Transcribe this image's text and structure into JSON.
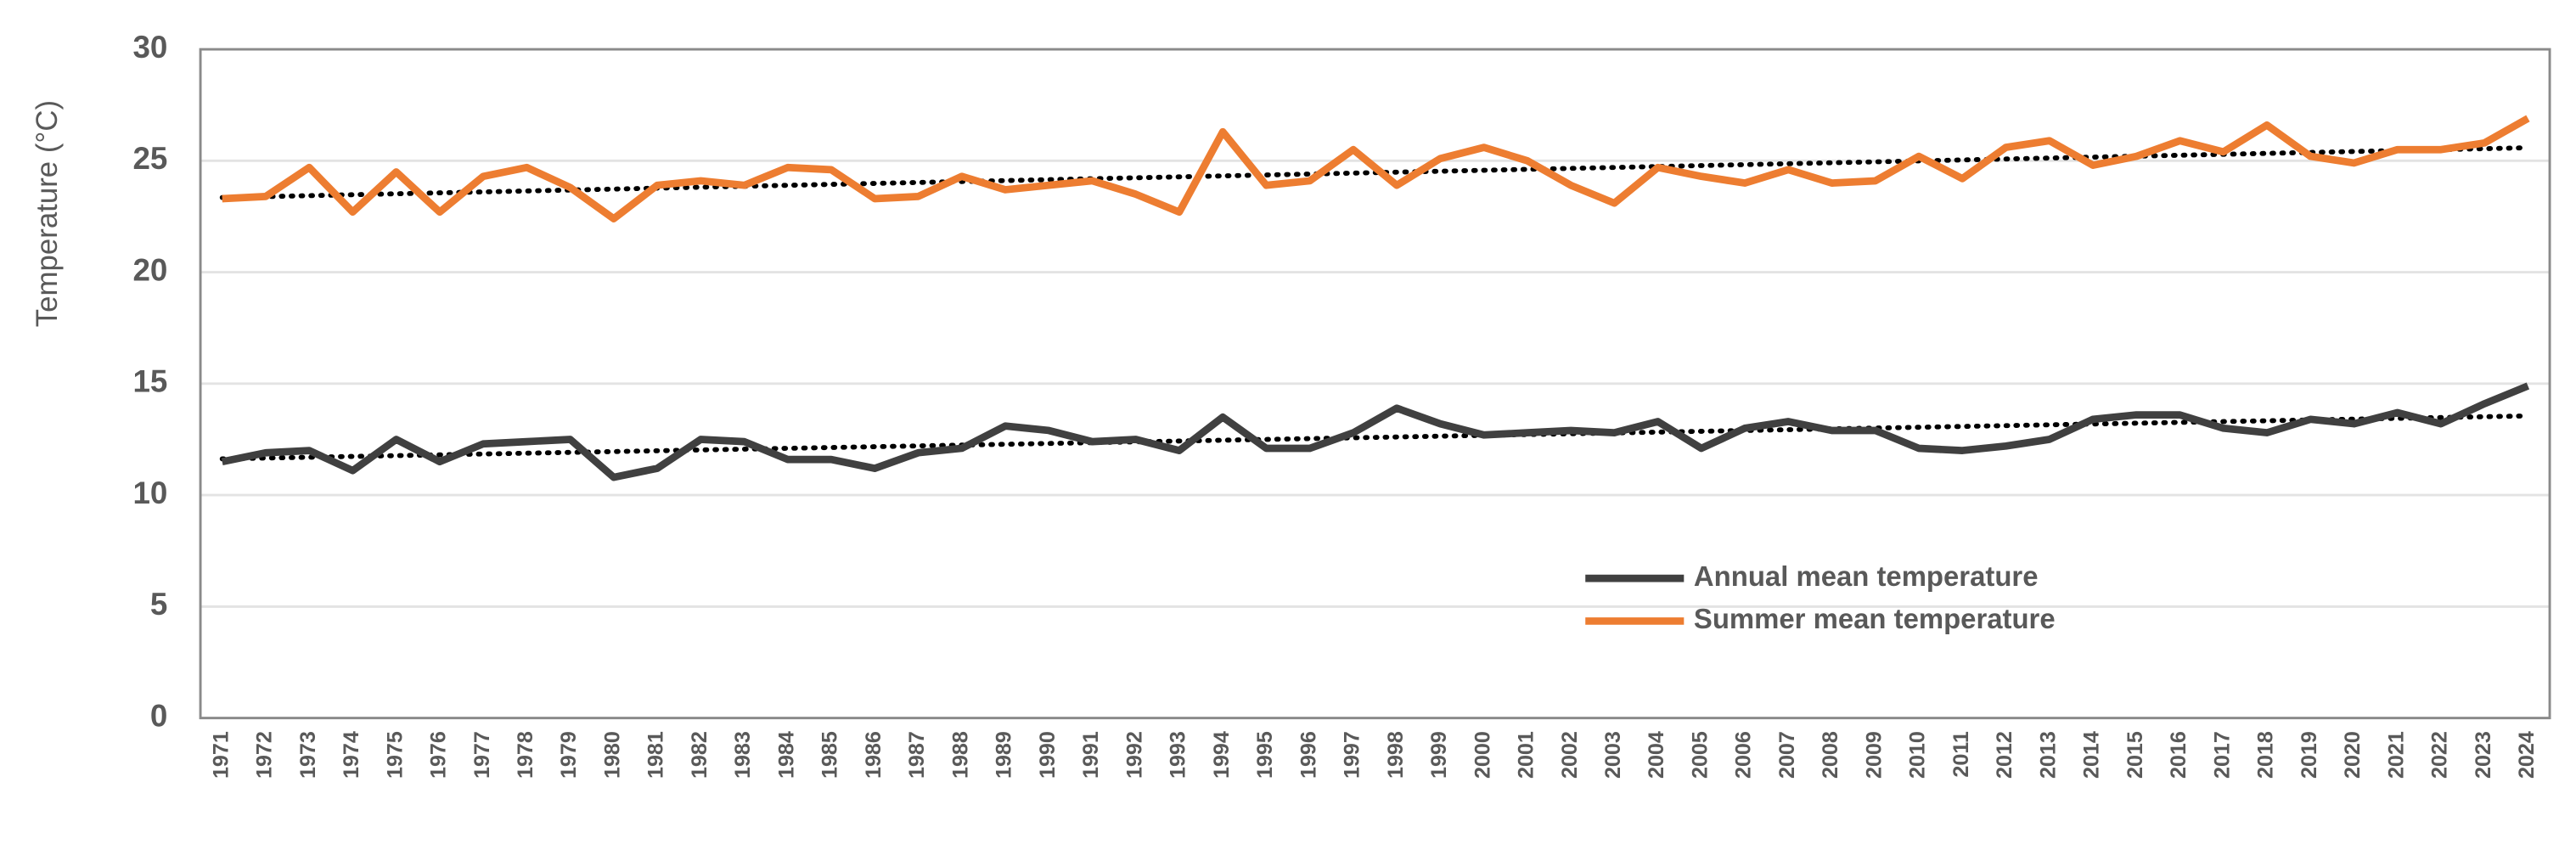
{
  "chart_data": {
    "type": "line",
    "y_label": "Temperature (°C)",
    "categories": [
      "1971",
      "1972",
      "1973",
      "1974",
      "1975",
      "1976",
      "1977",
      "1978",
      "1979",
      "1980",
      "1981",
      "1982",
      "1983",
      "1984",
      "1985",
      "1986",
      "1987",
      "1988",
      "1989",
      "1990",
      "1991",
      "1992",
      "1993",
      "1994",
      "1995",
      "1996",
      "1997",
      "1998",
      "1999",
      "2000",
      "2001",
      "2002",
      "2003",
      "2004",
      "2005",
      "2006",
      "2007",
      "2008",
      "2009",
      "2010",
      "2011",
      "2012",
      "2013",
      "2014",
      "2015",
      "2016",
      "2017",
      "2018",
      "2019",
      "2020",
      "2021",
      "2022",
      "2023",
      "2024"
    ],
    "series": [
      {
        "name": "Annual mean temperature",
        "color": "#404040",
        "values": [
          11.5,
          11.9,
          12.0,
          11.1,
          12.5,
          11.5,
          12.3,
          12.4,
          12.5,
          10.8,
          11.2,
          12.5,
          12.4,
          11.6,
          11.6,
          11.2,
          11.9,
          12.1,
          13.1,
          12.9,
          12.4,
          12.5,
          12.0,
          13.5,
          12.1,
          12.1,
          12.8,
          13.9,
          13.2,
          12.7,
          12.8,
          12.9,
          12.8,
          13.3,
          12.1,
          13.0,
          13.3,
          12.9,
          12.9,
          12.1,
          12.0,
          12.2,
          12.5,
          13.4,
          13.6,
          13.6,
          13.0,
          12.8,
          13.4,
          13.2,
          13.7,
          13.2,
          14.1,
          14.9
        ]
      },
      {
        "name": "Summer mean temperature",
        "color": "#ed7d31",
        "values": [
          23.3,
          23.4,
          24.7,
          22.7,
          24.5,
          22.7,
          24.3,
          24.7,
          23.8,
          22.4,
          23.9,
          24.1,
          23.9,
          24.7,
          24.6,
          23.3,
          23.4,
          24.3,
          23.7,
          23.9,
          24.1,
          23.5,
          22.7,
          26.3,
          23.9,
          24.1,
          25.5,
          23.9,
          25.1,
          25.6,
          25.0,
          23.9,
          23.1,
          24.7,
          24.3,
          24.0,
          24.6,
          24.0,
          24.1,
          25.2,
          24.2,
          25.6,
          25.9,
          24.8,
          25.2,
          25.9,
          25.4,
          26.6,
          25.2,
          24.9,
          25.5,
          25.5,
          25.8,
          26.9
        ]
      }
    ],
    "ylim": [
      0,
      30
    ],
    "yticks": [
      0,
      5,
      10,
      15,
      20,
      25,
      30
    ],
    "grid": true,
    "trendline": true,
    "legend": "lower right"
  }
}
